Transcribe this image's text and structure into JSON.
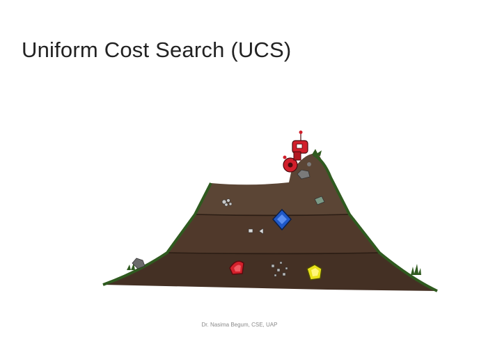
{
  "slide": {
    "title": "Uniform Cost Search (UCS)",
    "footer": "Dr. Nasima Begum, CSE, UAP"
  },
  "illustration": {
    "subject": "dirt mound with buried gems and a red robot digging on top",
    "colors": {
      "dirt_light": "#5b4535",
      "dirt_mid": "#50392b",
      "dirt_dark": "#443024",
      "grass": "#2f5a1f",
      "robot": "#d11f2b",
      "gem_blue": "#1f58c8",
      "gem_red": "#d3202b",
      "gem_yellow": "#e9e219"
    }
  }
}
